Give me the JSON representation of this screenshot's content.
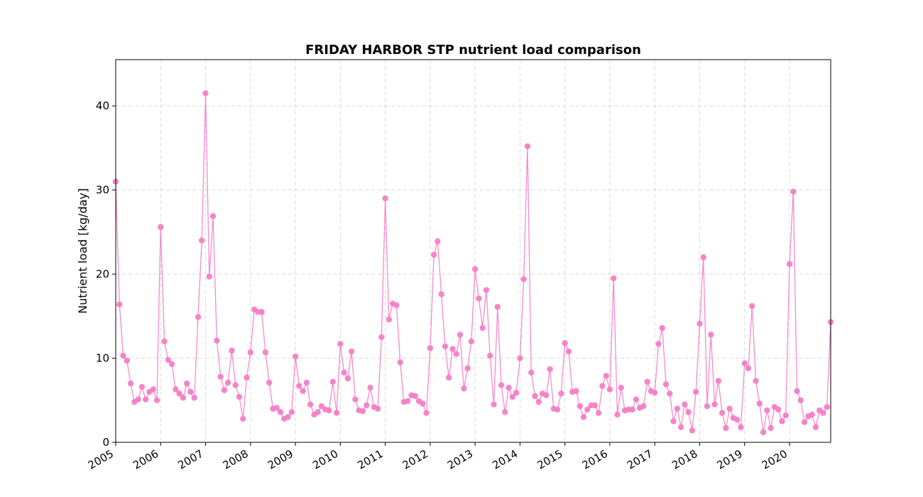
{
  "chart_data": {
    "type": "line",
    "title": "FRIDAY HARBOR STP nutrient load comparison",
    "xlabel": "",
    "ylabel": "Nutrient load [kg/day]",
    "x_tick_labels": [
      "2005",
      "2006",
      "2007",
      "2008",
      "2009",
      "2010",
      "2011",
      "2012",
      "2013",
      "2014",
      "2015",
      "2016",
      "2017",
      "2018",
      "2019",
      "2020"
    ],
    "y_tick_labels": [
      "0",
      "10",
      "20",
      "30",
      "40"
    ],
    "xlim": [
      "2005-01",
      "2020-12"
    ],
    "ylim": [
      0,
      45.5
    ],
    "grid": true,
    "legend": "none",
    "color": "#f47ec6",
    "series": [
      {
        "x": [
          "2005-01",
          "2005-02",
          "2005-03",
          "2005-04",
          "2005-05",
          "2005-06",
          "2005-07",
          "2005-08",
          "2005-09",
          "2005-10",
          "2005-11",
          "2005-12",
          "2006-01",
          "2006-02",
          "2006-03",
          "2006-04",
          "2006-05",
          "2006-06",
          "2006-07",
          "2006-08",
          "2006-09",
          "2006-10",
          "2006-11",
          "2006-12",
          "2007-01",
          "2007-02",
          "2007-03",
          "2007-04",
          "2007-05",
          "2007-06",
          "2007-07",
          "2007-08",
          "2007-09",
          "2007-10",
          "2007-11",
          "2007-12",
          "2008-01",
          "2008-02",
          "2008-03",
          "2008-04",
          "2008-05",
          "2008-06",
          "2008-07",
          "2008-08",
          "2008-09",
          "2008-10",
          "2008-11",
          "2008-12",
          "2009-01",
          "2009-02",
          "2009-03",
          "2009-04",
          "2009-05",
          "2009-06",
          "2009-07",
          "2009-08",
          "2009-09",
          "2009-10",
          "2009-11",
          "2009-12",
          "2010-01",
          "2010-02",
          "2010-03",
          "2010-04",
          "2010-05",
          "2010-06",
          "2010-07",
          "2010-08",
          "2010-09",
          "2010-10",
          "2010-11",
          "2010-12",
          "2011-01",
          "2011-02",
          "2011-03",
          "2011-04",
          "2011-05",
          "2011-06",
          "2011-07",
          "2011-08",
          "2011-09",
          "2011-10",
          "2011-11",
          "2011-12",
          "2012-01",
          "2012-02",
          "2012-03",
          "2012-04",
          "2012-05",
          "2012-06",
          "2012-07",
          "2012-08",
          "2012-09",
          "2012-10",
          "2012-11",
          "2012-12",
          "2013-01",
          "2013-02",
          "2013-03",
          "2013-04",
          "2013-05",
          "2013-06",
          "2013-07",
          "2013-08",
          "2013-09",
          "2013-10",
          "2013-11",
          "2013-12",
          "2014-01",
          "2014-02",
          "2014-03",
          "2014-04",
          "2014-05",
          "2014-06",
          "2014-07",
          "2014-08",
          "2014-09",
          "2014-10",
          "2014-11",
          "2014-12",
          "2015-01",
          "2015-02",
          "2015-03",
          "2015-04",
          "2015-05",
          "2015-06",
          "2015-07",
          "2015-08",
          "2015-09",
          "2015-10",
          "2015-11",
          "2015-12",
          "2016-01",
          "2016-02",
          "2016-03",
          "2016-04",
          "2016-05",
          "2016-06",
          "2016-07",
          "2016-08",
          "2016-09",
          "2016-10",
          "2016-11",
          "2016-12",
          "2017-01",
          "2017-02",
          "2017-03",
          "2017-04",
          "2017-05",
          "2017-06",
          "2017-07",
          "2017-08",
          "2017-09",
          "2017-10",
          "2017-11",
          "2017-12",
          "2018-01",
          "2018-02",
          "2018-03",
          "2018-04",
          "2018-05",
          "2018-06",
          "2018-07",
          "2018-08",
          "2018-09",
          "2018-10",
          "2018-11",
          "2018-12",
          "2019-01",
          "2019-02",
          "2019-03",
          "2019-04",
          "2019-05",
          "2019-06",
          "2019-07",
          "2019-08",
          "2019-09",
          "2019-10",
          "2019-11",
          "2019-12",
          "2020-01",
          "2020-02",
          "2020-03",
          "2020-04",
          "2020-05",
          "2020-06",
          "2020-07",
          "2020-08",
          "2020-09",
          "2020-10",
          "2020-11",
          "2020-12"
        ],
        "y": [
          31.0,
          16.4,
          10.3,
          9.7,
          7.0,
          4.8,
          5.1,
          6.6,
          5.1,
          6.0,
          6.3,
          5.0,
          25.6,
          12.0,
          9.8,
          9.3,
          6.3,
          5.8,
          5.3,
          7.0,
          6.0,
          5.3,
          14.9,
          24.0,
          41.5,
          19.7,
          26.9,
          12.1,
          7.8,
          6.2,
          7.1,
          10.9,
          6.8,
          5.4,
          2.8,
          7.7,
          10.7,
          15.8,
          15.5,
          15.5,
          10.7,
          7.1,
          4.0,
          4.1,
          3.6,
          2.8,
          3.0,
          3.6,
          10.2,
          6.7,
          6.1,
          7.1,
          4.5,
          3.3,
          3.6,
          4.3,
          3.9,
          3.8,
          7.2,
          3.5,
          11.7,
          8.3,
          7.6,
          10.8,
          5.1,
          3.8,
          3.7,
          4.4,
          6.5,
          4.2,
          4.0,
          12.5,
          29.0,
          14.6,
          16.5,
          16.3,
          9.5,
          4.8,
          4.9,
          5.6,
          5.5,
          4.9,
          4.6,
          3.5,
          11.2,
          22.3,
          23.9,
          17.6,
          11.4,
          7.7,
          11.1,
          10.5,
          12.8,
          6.4,
          8.8,
          12.0,
          20.6,
          17.1,
          13.6,
          18.1,
          10.3,
          4.5,
          16.1,
          6.8,
          3.6,
          6.5,
          5.4,
          5.9,
          10.0,
          19.4,
          35.2,
          8.3,
          5.5,
          4.8,
          5.8,
          5.6,
          8.7,
          4.0,
          3.9,
          5.8,
          11.8,
          10.8,
          6.0,
          6.1,
          4.3,
          3.0,
          3.9,
          4.4,
          4.4,
          3.5,
          6.7,
          7.9,
          6.3,
          19.5,
          3.3,
          6.5,
          3.8,
          3.9,
          3.9,
          5.1,
          4.1,
          4.3,
          7.2,
          6.1,
          5.9,
          11.7,
          13.6,
          6.9,
          5.8,
          2.5,
          4.0,
          1.8,
          4.5,
          3.6,
          1.4,
          6.0,
          14.1,
          22.0,
          4.3,
          12.8,
          4.5,
          7.3,
          3.5,
          1.7,
          4.0,
          2.9,
          2.7,
          1.8,
          9.4,
          8.8,
          16.2,
          7.3,
          4.6,
          1.2,
          3.8,
          1.7,
          4.2,
          3.9,
          2.5,
          3.2,
          21.2,
          29.8,
          6.1,
          5.0,
          2.4,
          3.1,
          3.3,
          1.8,
          3.8,
          3.5,
          4.2,
          14.3
        ]
      }
    ]
  }
}
